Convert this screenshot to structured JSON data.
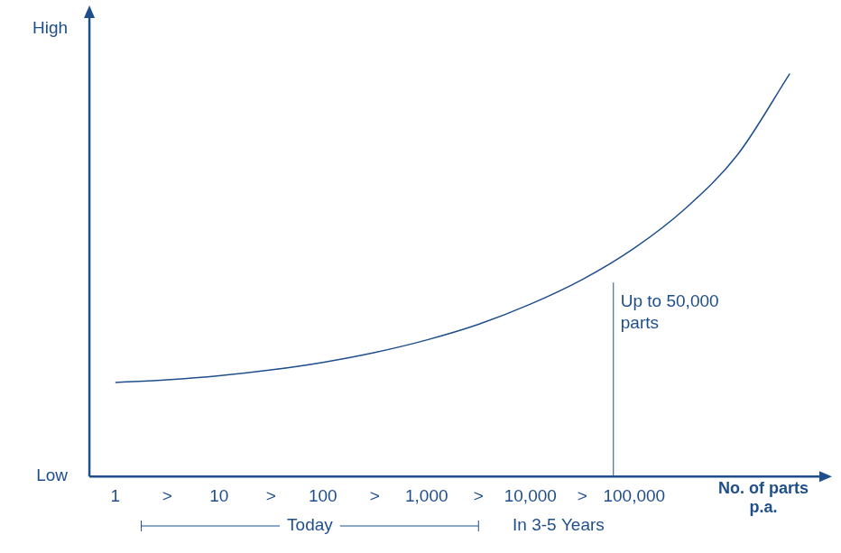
{
  "chart_data": {
    "type": "line",
    "categories": [
      "1",
      ">",
      "10",
      ">",
      "100",
      ">",
      "1,000",
      ">",
      "10,000",
      ">",
      "100,000",
      null,
      null,
      null
    ],
    "values": [
      21,
      21.6,
      22.5,
      23.8,
      25.5,
      27.7,
      30.5,
      34,
      38.5,
      44,
      51,
      60,
      72,
      90
    ],
    "color": "#1f4e8c",
    "marker": "none",
    "ylim": [
      0,
      100
    ],
    "yticks": [
      {
        "value": 0,
        "label": "Low"
      },
      {
        "value": 100,
        "label": "High"
      }
    ],
    "x_label": "No. of parts p.a.",
    "annotations": [
      "Up to 50,000 parts",
      "Today",
      "In 3-5 Years"
    ],
    "grid": false
  }
}
